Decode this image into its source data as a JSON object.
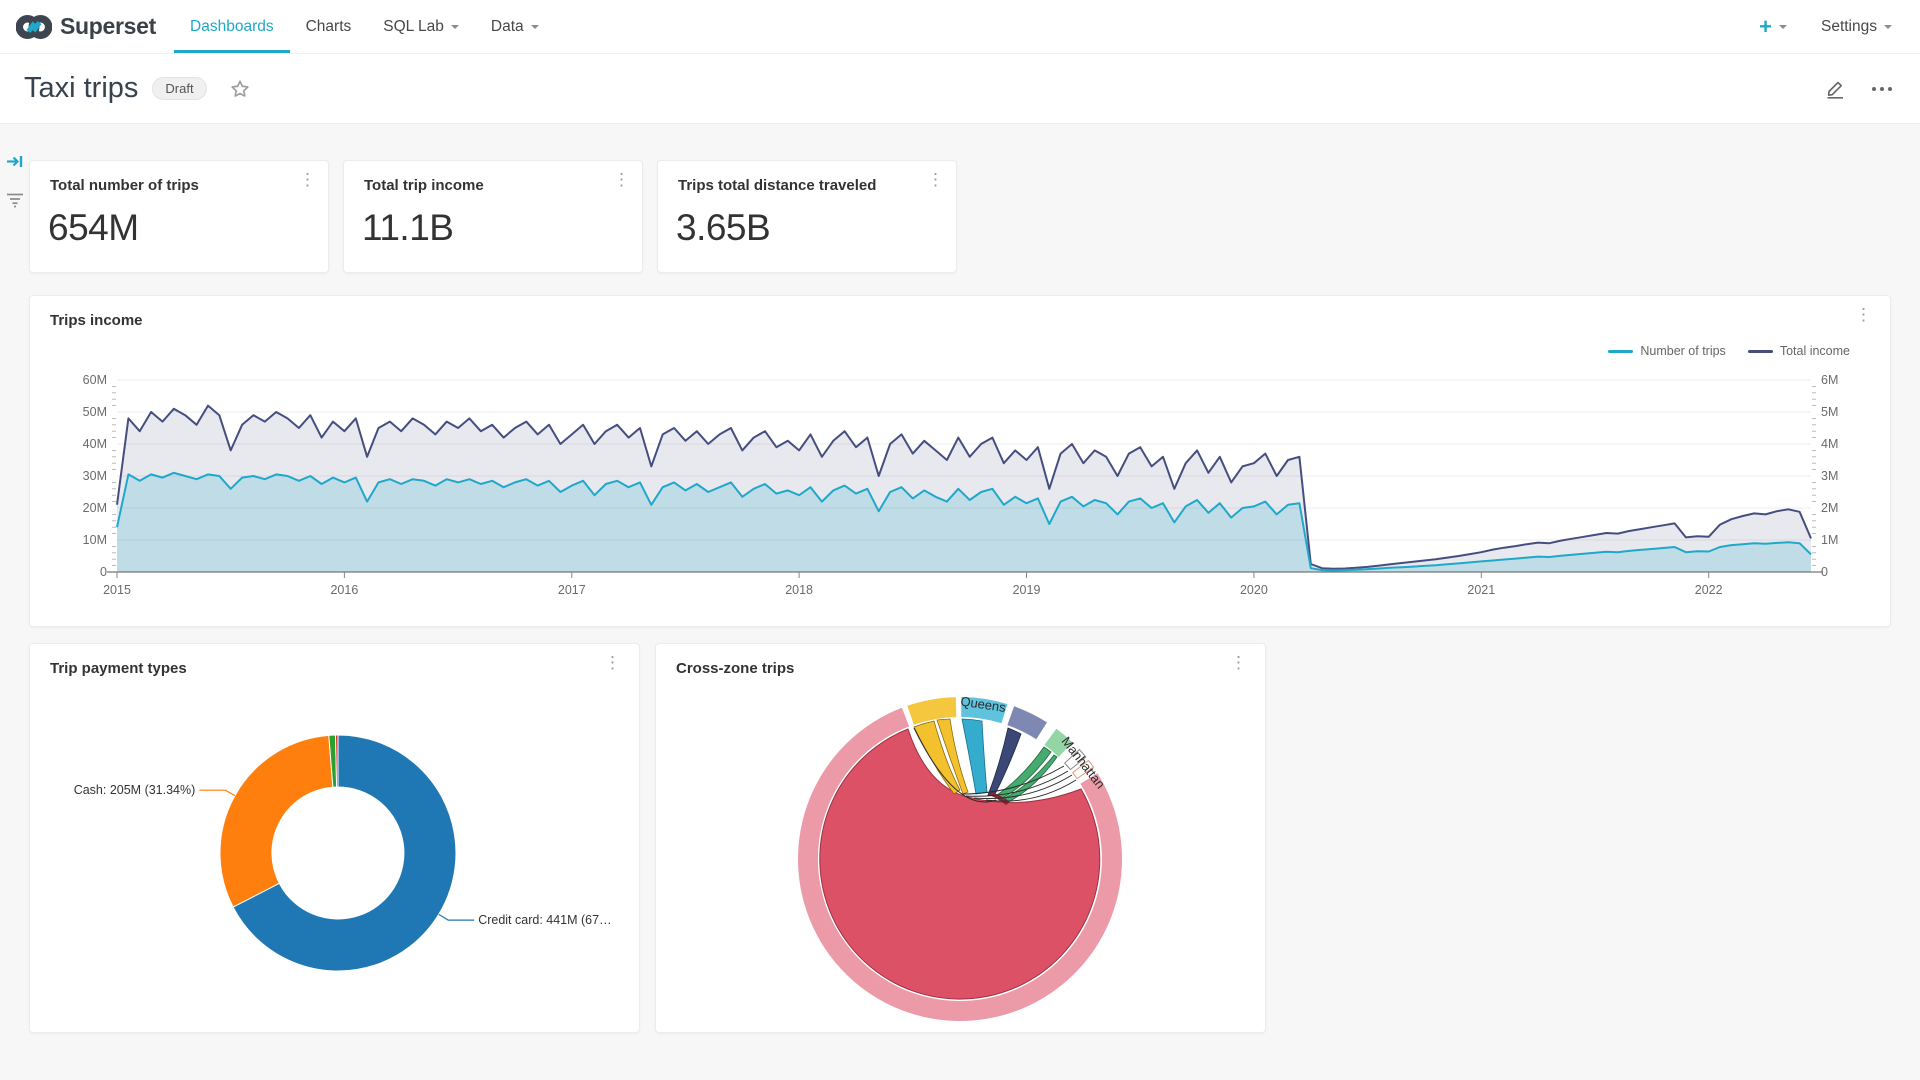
{
  "app": {
    "background": "#F7F7F7",
    "accent": "#1FA8C9"
  },
  "nav": {
    "brand": "Superset",
    "items": [
      {
        "label": "Dashboards",
        "active": true,
        "caret": false
      },
      {
        "label": "Charts",
        "active": false,
        "caret": false
      },
      {
        "label": "SQL Lab",
        "active": false,
        "caret": true
      },
      {
        "label": "Data",
        "active": false,
        "caret": true
      }
    ],
    "new_button": "+",
    "settings_label": "Settings"
  },
  "header": {
    "title": "Taxi trips",
    "badge": "Draft"
  },
  "kpis": [
    {
      "title": "Total number of trips",
      "value": "654M"
    },
    {
      "title": "Total trip income",
      "value": "11.1B"
    },
    {
      "title": "Trips total distance traveled",
      "value": "3.65B"
    }
  ],
  "chart_data": [
    {
      "type": "line",
      "title": "Trips income",
      "legend": [
        {
          "name": "Number of trips",
          "color": "#1FA8C9"
        },
        {
          "name": "Total income",
          "color": "#454E7E"
        }
      ],
      "x_start": 2015,
      "x_step": 0.05,
      "x_max": 2022.45,
      "x_ticks": [
        2015,
        2016,
        2017,
        2018,
        2019,
        2020,
        2021,
        2022
      ],
      "left_axis": {
        "ticks": [
          "60M",
          "50M",
          "40M",
          "30M",
          "20M",
          "10M",
          "0"
        ],
        "max": 60
      },
      "right_axis": {
        "ticks": [
          "6M",
          "5M",
          "4M",
          "3M",
          "2M",
          "1M",
          "0"
        ],
        "max": 6
      },
      "series": [
        {
          "name": "Total income",
          "axis": "left",
          "color": "#454E7E",
          "fill": "rgba(69,78,126,0.12)",
          "values": [
            21,
            48,
            44,
            50,
            47,
            51,
            49,
            46,
            52,
            49,
            38,
            46,
            49,
            47,
            50,
            48,
            45,
            49,
            42,
            47,
            44,
            48,
            36,
            45,
            47,
            44,
            48,
            46,
            43,
            47,
            45,
            48,
            44,
            46,
            42,
            45,
            47,
            43,
            46,
            40,
            43,
            46,
            40,
            44,
            46,
            42,
            45,
            33,
            43,
            45,
            41,
            44,
            40,
            43,
            45,
            38,
            42,
            44,
            39,
            41,
            38,
            43,
            36,
            41,
            44,
            39,
            42,
            30,
            40,
            43,
            37,
            41,
            38,
            35,
            42,
            36,
            40,
            42,
            34,
            38,
            35,
            39,
            26,
            37,
            40,
            34,
            38,
            36,
            30,
            37,
            39,
            33,
            36,
            26,
            34,
            38,
            31,
            36,
            28,
            33,
            34,
            37,
            30,
            35,
            36,
            2.5,
            1.2,
            1,
            1.1,
            1.3,
            1.6,
            2,
            2.4,
            2.8,
            3.2,
            3.6,
            4,
            4.5,
            5,
            5.6,
            6.2,
            7,
            7.6,
            8.1,
            8.7,
            9.2,
            9,
            9.8,
            10.4,
            11,
            11.6,
            12.2,
            12,
            12.8,
            13.4,
            14,
            14.6,
            15.2,
            10.8,
            11.2,
            11,
            14.8,
            16.5,
            17.5,
            18.3,
            18,
            19,
            19.6,
            18.8,
            10.5
          ]
        },
        {
          "name": "Number of trips",
          "axis": "right",
          "color": "#1FA8C9",
          "fill": "rgba(31,168,201,0.20)",
          "values": [
            1.4,
            3.05,
            2.85,
            3.05,
            2.95,
            3.1,
            3,
            2.9,
            3.05,
            3,
            2.6,
            2.95,
            3,
            2.9,
            3.05,
            3,
            2.85,
            3,
            2.75,
            2.95,
            2.8,
            2.95,
            2.2,
            2.8,
            2.9,
            2.75,
            2.9,
            2.85,
            2.7,
            2.9,
            2.8,
            2.9,
            2.75,
            2.85,
            2.65,
            2.8,
            2.9,
            2.7,
            2.85,
            2.5,
            2.7,
            2.85,
            2.4,
            2.75,
            2.85,
            2.65,
            2.8,
            2.1,
            2.65,
            2.8,
            2.55,
            2.75,
            2.5,
            2.65,
            2.8,
            2.35,
            2.6,
            2.75,
            2.45,
            2.55,
            2.4,
            2.65,
            2.2,
            2.55,
            2.7,
            2.45,
            2.6,
            1.9,
            2.5,
            2.65,
            2.3,
            2.55,
            2.35,
            2.2,
            2.6,
            2.25,
            2.5,
            2.6,
            2.1,
            2.35,
            2.15,
            2.3,
            1.5,
            2.2,
            2.35,
            2.05,
            2.25,
            2.15,
            1.8,
            2.2,
            2.3,
            2,
            2.15,
            1.55,
            2.05,
            2.25,
            1.85,
            2.15,
            1.7,
            2,
            2.05,
            2.2,
            1.8,
            2.1,
            2.15,
            0.12,
            0.06,
            0.05,
            0.06,
            0.07,
            0.09,
            0.11,
            0.13,
            0.15,
            0.17,
            0.19,
            0.21,
            0.24,
            0.27,
            0.3,
            0.33,
            0.36,
            0.39,
            0.42,
            0.45,
            0.48,
            0.47,
            0.51,
            0.54,
            0.57,
            0.6,
            0.63,
            0.62,
            0.66,
            0.69,
            0.72,
            0.75,
            0.78,
            0.62,
            0.65,
            0.64,
            0.78,
            0.84,
            0.87,
            0.9,
            0.88,
            0.91,
            0.93,
            0.9,
            0.55
          ]
        }
      ]
    },
    {
      "type": "pie",
      "title": "Trip payment types",
      "slices": [
        {
          "label": "Credit card",
          "pct": 67.42,
          "color": "#1f77b4",
          "callout": "Credit card: 441M (67…"
        },
        {
          "label": "Cash",
          "pct": 31.34,
          "color": "#ff7f0e",
          "callout": "Cash: 205M (31.34%)"
        },
        {
          "label": "",
          "pct": 0.9,
          "color": "#2ca02c",
          "callout": ""
        },
        {
          "label": "",
          "pct": 0.34,
          "color": "#d62728",
          "callout": ""
        }
      ]
    },
    {
      "type": "chord",
      "title": "Cross-zone trips",
      "segments": [
        {
          "label": "Manhattan",
          "color": "#EC99A8",
          "stroke": "",
          "start": 58,
          "end": 339
        },
        {
          "label": "",
          "color": "#F5C73E",
          "stroke": "",
          "start": 341,
          "end": 358.5
        },
        {
          "label": "Queens",
          "color": "#5FC3DE",
          "stroke": "",
          "start": 360.5,
          "end": 377
        },
        {
          "label": "",
          "color": "#7F87B3",
          "stroke": "",
          "start": 379.5,
          "end": 392.5
        },
        {
          "label": "",
          "color": "#93D5A5",
          "stroke": "",
          "start": 396.5,
          "end": 404
        },
        {
          "label": "",
          "color": "#FFFFFF",
          "stroke": "#8a8a8a",
          "start": 407.5,
          "end": 411
        },
        {
          "label": "",
          "color": "#FFFFFF",
          "stroke": "#DD9B7B",
          "start": 412.5,
          "end": 415.5
        }
      ],
      "labels": [
        {
          "text": "Queens",
          "angle": 8.5,
          "radius": 152
        },
        {
          "text": "Manhattan",
          "angle": 52,
          "radius": 152
        }
      ],
      "palette": {
        "self": "#DB4A60",
        "selfStroke": "#9A3342",
        "yellow": "#F2BE25",
        "yellowStroke": "#8a6a10",
        "cyan": "#2BA9CC",
        "cyanStroke": "#17708c",
        "navy": "#33406F",
        "navyStroke": "#1f2947",
        "green": "#3FA768",
        "greenStroke": "#1e6b3e",
        "dark": "#2B2B2B",
        "knot": "#7E2430"
      }
    }
  ]
}
